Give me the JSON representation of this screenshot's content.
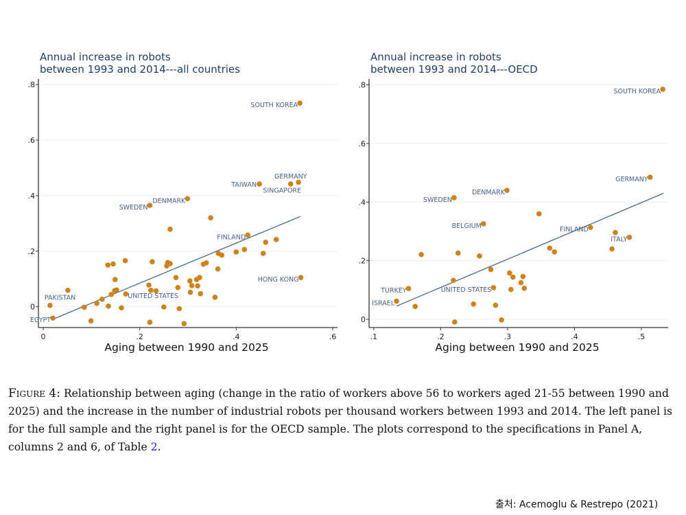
{
  "chart_data": [
    {
      "type": "scatter",
      "title_lines": [
        "Annual increase in robots",
        "between 1993 and 2014---all countries"
      ],
      "xlabel": "Aging between 1990 and 2025",
      "ylabel": "",
      "xlim": [
        -0.01,
        0.61
      ],
      "ylim": [
        -0.075,
        0.82
      ],
      "xticks": [
        0,
        0.2,
        0.4,
        0.6
      ],
      "xtick_labels": [
        "0",
        ".2",
        ".4",
        ".6"
      ],
      "yticks": [
        0,
        0.2,
        0.4,
        0.6,
        0.8
      ],
      "ytick_labels": [
        "0",
        ".2",
        ".4",
        ".6",
        ".8"
      ],
      "grid": "horizontal",
      "marker_color": "#d0821a",
      "fit_color": "#4a6a90",
      "fit_line": [
        [
          0.02,
          -0.045
        ],
        [
          0.533,
          0.325
        ]
      ],
      "points": [
        {
          "x": 0.532,
          "y": 0.733,
          "label": "SOUTH KOREA"
        },
        {
          "x": 0.448,
          "y": 0.442,
          "label": "TAIWAN"
        },
        {
          "x": 0.513,
          "y": 0.442,
          "label": "GERMANY"
        },
        {
          "x": 0.529,
          "y": 0.448,
          "label": "SINGAPORE"
        },
        {
          "x": 0.299,
          "y": 0.389,
          "label": "DENMARK"
        },
        {
          "x": 0.221,
          "y": 0.365,
          "label": "SWEDEN"
        },
        {
          "x": 0.347,
          "y": 0.32
        },
        {
          "x": 0.263,
          "y": 0.279
        },
        {
          "x": 0.424,
          "y": 0.258,
          "label": "FINLAND"
        },
        {
          "x": 0.461,
          "y": 0.232
        },
        {
          "x": 0.483,
          "y": 0.242
        },
        {
          "x": 0.417,
          "y": 0.206
        },
        {
          "x": 0.4,
          "y": 0.197
        },
        {
          "x": 0.363,
          "y": 0.192
        },
        {
          "x": 0.37,
          "y": 0.186
        },
        {
          "x": 0.456,
          "y": 0.192
        },
        {
          "x": 0.17,
          "y": 0.166
        },
        {
          "x": 0.226,
          "y": 0.162
        },
        {
          "x": 0.134,
          "y": 0.15
        },
        {
          "x": 0.145,
          "y": 0.154
        },
        {
          "x": 0.258,
          "y": 0.159
        },
        {
          "x": 0.263,
          "y": 0.155
        },
        {
          "x": 0.256,
          "y": 0.147
        },
        {
          "x": 0.332,
          "y": 0.153
        },
        {
          "x": 0.338,
          "y": 0.158
        },
        {
          "x": 0.362,
          "y": 0.136
        },
        {
          "x": 0.149,
          "y": 0.098
        },
        {
          "x": 0.275,
          "y": 0.105
        },
        {
          "x": 0.324,
          "y": 0.105
        },
        {
          "x": 0.318,
          "y": 0.098
        },
        {
          "x": 0.304,
          "y": 0.093
        },
        {
          "x": 0.308,
          "y": 0.076
        },
        {
          "x": 0.32,
          "y": 0.075
        },
        {
          "x": 0.279,
          "y": 0.069
        },
        {
          "x": 0.219,
          "y": 0.078
        },
        {
          "x": 0.051,
          "y": 0.059
        },
        {
          "x": 0.152,
          "y": 0.06
        },
        {
          "x": 0.148,
          "y": 0.058
        },
        {
          "x": 0.223,
          "y": 0.059
        },
        {
          "x": 0.234,
          "y": 0.057
        },
        {
          "x": 0.305,
          "y": 0.052
        },
        {
          "x": 0.326,
          "y": 0.047
        },
        {
          "x": 0.171,
          "y": 0.046,
          "label": "UNITED STATES",
          "label_side": "right"
        },
        {
          "x": 0.141,
          "y": 0.044
        },
        {
          "x": 0.122,
          "y": 0.027
        },
        {
          "x": 0.111,
          "y": 0.012
        },
        {
          "x": 0.135,
          "y": 0.002
        },
        {
          "x": 0.162,
          "y": -0.004
        },
        {
          "x": 0.25,
          "y": -0.001
        },
        {
          "x": 0.085,
          "y": -0.002
        },
        {
          "x": 0.282,
          "y": -0.007
        },
        {
          "x": 0.356,
          "y": 0.034
        },
        {
          "x": 0.014,
          "y": 0.005,
          "label": "PAKISTAN"
        },
        {
          "x": 0.02,
          "y": -0.041,
          "label": "EGYPT"
        },
        {
          "x": 0.099,
          "y": -0.051
        },
        {
          "x": 0.221,
          "y": -0.056
        },
        {
          "x": 0.292,
          "y": -0.061
        },
        {
          "x": 0.534,
          "y": 0.105,
          "label": "HONG KONG"
        }
      ]
    },
    {
      "type": "scatter",
      "title_lines": [
        "Annual increase in robots",
        "between 1993 and 2014---OECD"
      ],
      "xlabel": "Aging between 1990 and 2025",
      "ylabel": "",
      "xlim": [
        0.093,
        0.54
      ],
      "ylim": [
        -0.028,
        0.82
      ],
      "xticks": [
        0.1,
        0.2,
        0.3,
        0.4,
        0.5
      ],
      "xtick_labels": [
        ".1",
        ".2",
        ".3",
        ".4",
        ".5"
      ],
      "yticks": [
        0,
        0.2,
        0.4,
        0.6,
        0.8
      ],
      "ytick_labels": [
        "0",
        ".2",
        ".4",
        ".6",
        ".8"
      ],
      "grid": "horizontal",
      "marker_color": "#d0821a",
      "fit_color": "#4a6a90",
      "fit_line": [
        [
          0.134,
          0.045
        ],
        [
          0.533,
          0.43
        ]
      ],
      "points": [
        {
          "x": 0.532,
          "y": 0.785,
          "label": "SOUTH KOREA"
        },
        {
          "x": 0.513,
          "y": 0.485,
          "label": "GERMANY"
        },
        {
          "x": 0.299,
          "y": 0.44,
          "label": "DENMARK"
        },
        {
          "x": 0.22,
          "y": 0.415,
          "label": "SWEDEN"
        },
        {
          "x": 0.347,
          "y": 0.36
        },
        {
          "x": 0.264,
          "y": 0.326,
          "label": "BELGIUM"
        },
        {
          "x": 0.424,
          "y": 0.314,
          "label": "FINLAND"
        },
        {
          "x": 0.461,
          "y": 0.296
        },
        {
          "x": 0.482,
          "y": 0.28,
          "label": "ITALY"
        },
        {
          "x": 0.456,
          "y": 0.24
        },
        {
          "x": 0.363,
          "y": 0.243
        },
        {
          "x": 0.37,
          "y": 0.23
        },
        {
          "x": 0.171,
          "y": 0.221
        },
        {
          "x": 0.226,
          "y": 0.226
        },
        {
          "x": 0.258,
          "y": 0.216
        },
        {
          "x": 0.275,
          "y": 0.17
        },
        {
          "x": 0.303,
          "y": 0.158
        },
        {
          "x": 0.308,
          "y": 0.144
        },
        {
          "x": 0.323,
          "y": 0.146
        },
        {
          "x": 0.32,
          "y": 0.125
        },
        {
          "x": 0.325,
          "y": 0.106
        },
        {
          "x": 0.305,
          "y": 0.102
        },
        {
          "x": 0.219,
          "y": 0.133
        },
        {
          "x": 0.279,
          "y": 0.108,
          "label": "UNITED STATES"
        },
        {
          "x": 0.152,
          "y": 0.105,
          "label": "TURKEY"
        },
        {
          "x": 0.134,
          "y": 0.062,
          "label": "ISRAEL"
        },
        {
          "x": 0.162,
          "y": 0.044
        },
        {
          "x": 0.249,
          "y": 0.052
        },
        {
          "x": 0.282,
          "y": 0.048
        },
        {
          "x": 0.221,
          "y": -0.009
        },
        {
          "x": 0.291,
          "y": -0.002
        }
      ]
    }
  ],
  "caption": {
    "figure_label": "Figure 4:",
    "text": " Relationship between aging (change in the ratio of workers above 56 to workers aged 21-55 between 1990 and 2025) and the increase in the number of industrial robots per thousand workers between 1993 and 2014. The left panel is for the full sample and the right panel is for the OECD sample. The plots correspond to the specifications in Panel A, columns 2 and 6, of Table ",
    "table_ref": "2",
    "end": "."
  },
  "credit": "출처: Acemoglu & Restrepo (2021)"
}
